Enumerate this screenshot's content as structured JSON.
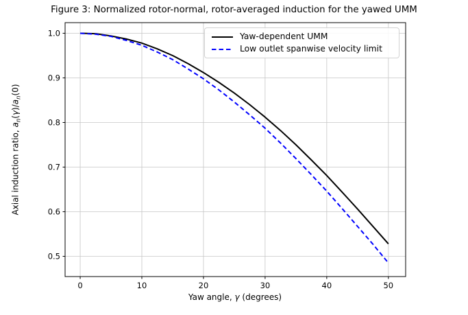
{
  "label_parts": {
    "x_prefix": "Yaw angle, ",
    "x_gamma": "γ",
    "x_suffix": " (degrees)",
    "y_prefix": "Axial induction ratio, ",
    "y_a": "a",
    "y_sub": "n",
    "y_open": "(",
    "y_gamma": "γ",
    "y_mid": ")/",
    "y_a2": "a",
    "y_sub2": "n",
    "y_close": "(0)"
  },
  "chart_data": {
    "type": "line",
    "title": "Figure 3: Normalized rotor-normal, rotor-averaged induction for the yawed UMM",
    "xlabel": "Yaw angle, γ (degrees)",
    "ylabel": "Axial induction ratio, aₙ(γ)/aₙ(0)",
    "x": [
      0,
      2.5,
      5,
      7.5,
      10,
      12.5,
      15,
      17.5,
      20,
      22.5,
      25,
      27.5,
      30,
      32.5,
      35,
      37.5,
      40,
      42.5,
      45,
      47.5,
      50
    ],
    "series": [
      {
        "name": "Yaw-dependent UMM",
        "color": "#000000",
        "style": "solid",
        "values": [
          1.0,
          0.999,
          0.994,
          0.987,
          0.978,
          0.965,
          0.95,
          0.932,
          0.912,
          0.89,
          0.866,
          0.84,
          0.812,
          0.782,
          0.75,
          0.716,
          0.681,
          0.644,
          0.606,
          0.567,
          0.528
        ]
      },
      {
        "name": "Low outlet spanwise velocity limit",
        "color": "#0000ff",
        "style": "dashed",
        "values": [
          1.0,
          0.998,
          0.993,
          0.984,
          0.973,
          0.958,
          0.941,
          0.92,
          0.898,
          0.873,
          0.846,
          0.817,
          0.787,
          0.754,
          0.719,
          0.683,
          0.646,
          0.607,
          0.567,
          0.527,
          0.485
        ]
      }
    ],
    "xticks": [
      0,
      10,
      20,
      30,
      40,
      50
    ],
    "xtick_labels": [
      "0",
      "10",
      "20",
      "30",
      "40",
      "50"
    ],
    "yticks": [
      0.5,
      0.6,
      0.7,
      0.8,
      0.9,
      1.0
    ],
    "ytick_labels": [
      "0.5",
      "0.6",
      "0.7",
      "0.8",
      "0.9",
      "1.0"
    ],
    "xlim": [
      -2.45,
      52.8
    ],
    "ylim": [
      0.4546,
      1.0238
    ],
    "grid": true,
    "grid_color": "#c6c6c6",
    "legend_position": "upper right"
  }
}
